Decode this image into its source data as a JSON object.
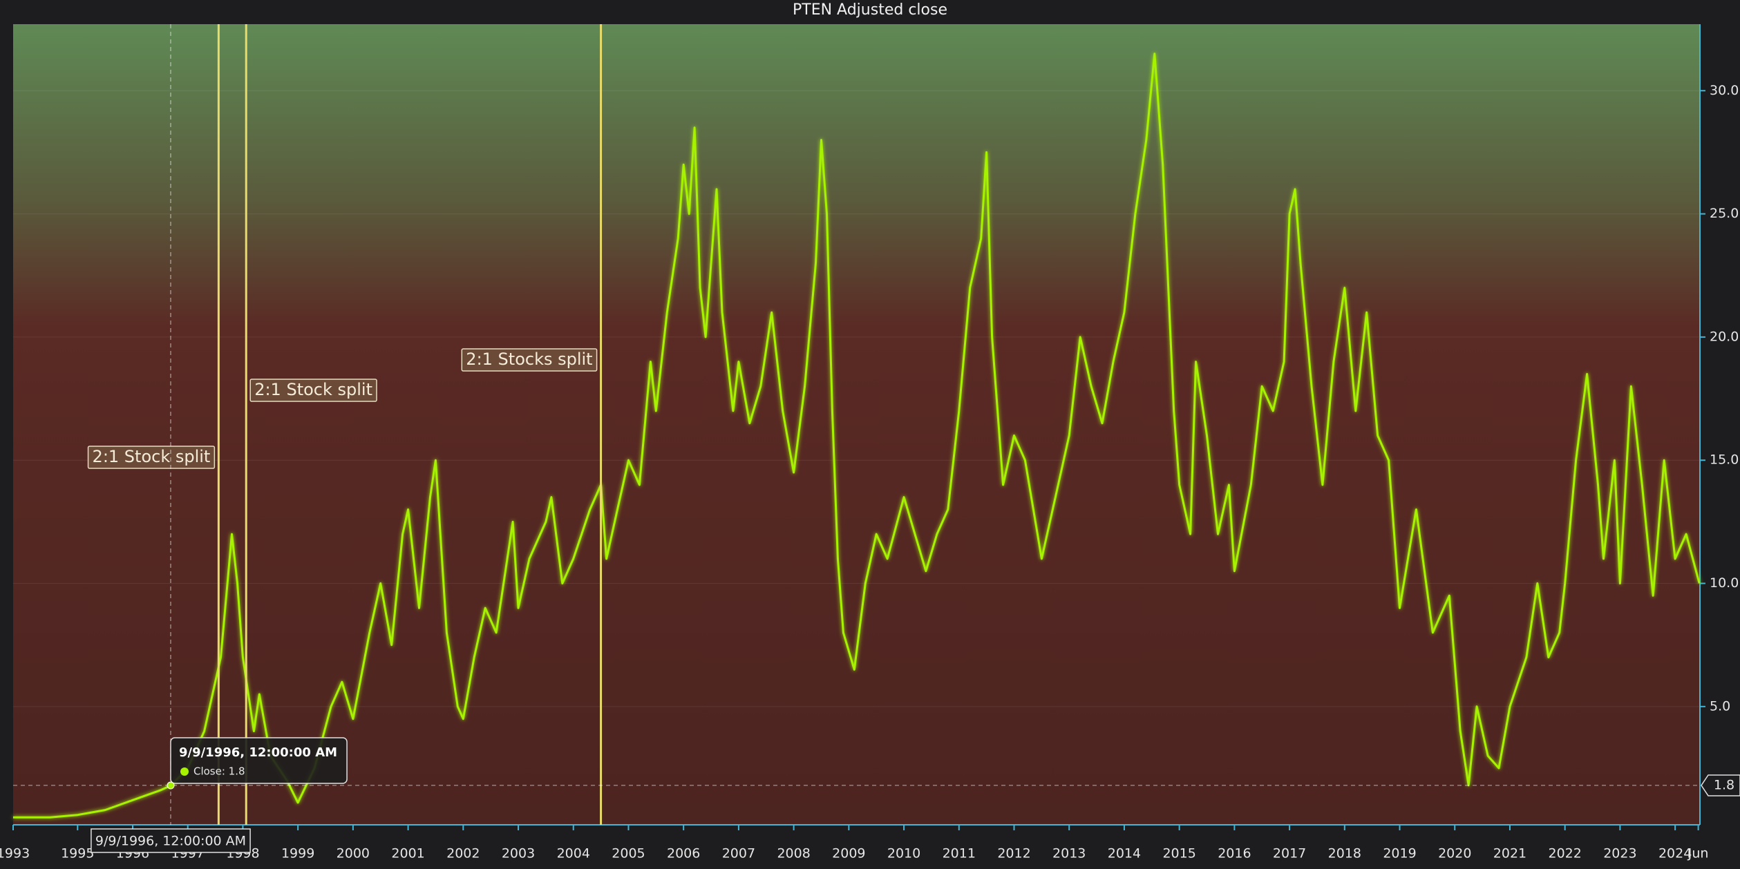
{
  "chart_data": {
    "type": "line",
    "title": "PTEN Adjusted close",
    "xlim": [
      1993.83,
      2024.45
    ],
    "ylim": [
      0.2,
      32.7
    ],
    "xticks": [
      {
        "value": 1993.83,
        "label": "1993"
      },
      1995,
      1996,
      1997,
      1998,
      1999,
      2000,
      2001,
      2002,
      2003,
      2004,
      2005,
      2006,
      2007,
      2008,
      2009,
      2010,
      2011,
      2012,
      2013,
      2014,
      2015,
      2016,
      2017,
      2018,
      2019,
      2020,
      2021,
      2022,
      2023,
      2024,
      {
        "value": 2024.42,
        "label": "Jun"
      }
    ],
    "yticks": [
      {
        "value": 5,
        "label": "5.0"
      },
      {
        "value": 10,
        "label": "10.0"
      },
      {
        "value": 15,
        "label": "15.0"
      },
      {
        "value": 20,
        "label": "20.0"
      },
      {
        "value": 25,
        "label": "25.0"
      },
      {
        "value": 30,
        "label": "30.0"
      }
    ],
    "grid": true,
    "series": [
      {
        "name": "Close",
        "color": "#a6f200",
        "x": [
          1993.83,
          1994.5,
          1995.0,
          1995.5,
          1996.0,
          1996.5,
          1996.7,
          1997.0,
          1997.3,
          1997.6,
          1997.8,
          1997.9,
          1998.0,
          1998.2,
          1998.3,
          1998.5,
          1998.8,
          1999.0,
          1999.3,
          1999.6,
          1999.8,
          2000.0,
          2000.3,
          2000.5,
          2000.7,
          2000.9,
          2001.0,
          2001.2,
          2001.4,
          2001.5,
          2001.7,
          2001.9,
          2002.0,
          2002.2,
          2002.4,
          2002.6,
          2002.9,
          2003.0,
          2003.2,
          2003.5,
          2003.6,
          2003.8,
          2004.0,
          2004.3,
          2004.5,
          2004.6,
          2004.8,
          2005.0,
          2005.2,
          2005.4,
          2005.5,
          2005.7,
          2005.9,
          2006.0,
          2006.1,
          2006.2,
          2006.3,
          2006.4,
          2006.6,
          2006.7,
          2006.9,
          2007.0,
          2007.2,
          2007.4,
          2007.6,
          2007.8,
          2008.0,
          2008.2,
          2008.4,
          2008.5,
          2008.6,
          2008.7,
          2008.8,
          2008.9,
          2009.1,
          2009.3,
          2009.5,
          2009.7,
          2010.0,
          2010.2,
          2010.4,
          2010.6,
          2010.8,
          2011.0,
          2011.2,
          2011.4,
          2011.5,
          2011.6,
          2011.8,
          2012.0,
          2012.2,
          2012.5,
          2012.8,
          2013.0,
          2013.2,
          2013.4,
          2013.6,
          2013.8,
          2014.0,
          2014.2,
          2014.4,
          2014.55,
          2014.7,
          2014.9,
          2015.0,
          2015.2,
          2015.3,
          2015.5,
          2015.7,
          2015.9,
          2016.0,
          2016.3,
          2016.5,
          2016.7,
          2016.9,
          2017.0,
          2017.1,
          2017.2,
          2017.4,
          2017.6,
          2017.8,
          2018.0,
          2018.2,
          2018.4,
          2018.6,
          2018.8,
          2019.0,
          2019.3,
          2019.6,
          2019.9,
          2020.1,
          2020.25,
          2020.4,
          2020.6,
          2020.8,
          2021.0,
          2021.3,
          2021.5,
          2021.7,
          2021.9,
          2022.0,
          2022.2,
          2022.4,
          2022.6,
          2022.7,
          2022.9,
          2023.0,
          2023.2,
          2023.4,
          2023.6,
          2023.8,
          2024.0,
          2024.2,
          2024.44
        ],
        "values": [
          0.5,
          0.5,
          0.6,
          0.8,
          1.2,
          1.6,
          1.8,
          2.5,
          4,
          7,
          12,
          10,
          7,
          4,
          5.5,
          3,
          2,
          1.1,
          2.5,
          5,
          6,
          4.5,
          8,
          10,
          7.5,
          12,
          13,
          9,
          13.5,
          15,
          8,
          5,
          4.5,
          7,
          9,
          8,
          12.5,
          9,
          11,
          12.5,
          13.5,
          10,
          11,
          13,
          14,
          11,
          13,
          15,
          14,
          19,
          17,
          21,
          24,
          27,
          25,
          28.5,
          22,
          20,
          26,
          21,
          17,
          19,
          16.5,
          18,
          21,
          17,
          14.5,
          18,
          23,
          28,
          25,
          17,
          11,
          8,
          6.5,
          10,
          12,
          11,
          13.5,
          12,
          10.5,
          12,
          13,
          17,
          22,
          24,
          27.5,
          20,
          14,
          16,
          15,
          11,
          14,
          16,
          20,
          18,
          16.5,
          19,
          21,
          25,
          28,
          31.5,
          27,
          17,
          14,
          12,
          19,
          16,
          12,
          14,
          10.5,
          14,
          18,
          17,
          19,
          25,
          26,
          23,
          18,
          14,
          19,
          22,
          17,
          21,
          16,
          15,
          9,
          13,
          8,
          9.5,
          4,
          1.8,
          5,
          3,
          2.5,
          5,
          7,
          10,
          7,
          8,
          10,
          15,
          18.5,
          14,
          11,
          15,
          10,
          18,
          14,
          9.5,
          15,
          11,
          12,
          10
        ]
      }
    ],
    "annotations": [
      {
        "x": 1997.56,
        "label": "2:1 Stock split"
      },
      {
        "x": 1998.06,
        "label": "2:1 Stock split"
      },
      {
        "x": 2004.5,
        "label": "2:1 Stocks split"
      }
    ],
    "annotation_color": "#e9dc6a",
    "crosshair": {
      "x": 1996.69,
      "label": "9/9/1996, 12:00:00 AM",
      "value": 1.8,
      "series_label": "Close: 1.8"
    }
  }
}
